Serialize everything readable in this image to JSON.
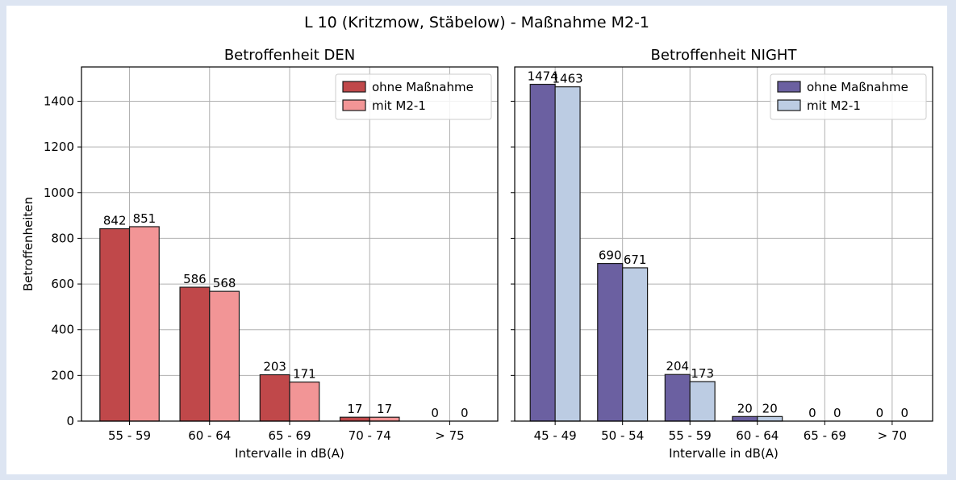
{
  "suptitle": "L 10 (Kritzmow, Stäbelow) - Maßnahme M2-1",
  "chart_data": [
    {
      "type": "bar",
      "title": "Betroffenheit DEN",
      "xlabel": "Intervalle in dB(A)",
      "ylabel": "Betroffenheiten",
      "categories": [
        "55 - 59",
        "60 - 64",
        "65 - 69",
        "70 - 74",
        "> 75"
      ],
      "series": [
        {
          "name": "ohne Maßnahme",
          "values": [
            842,
            586,
            203,
            17,
            0
          ],
          "color": "#c0484a"
        },
        {
          "name": "mit M2-1",
          "values": [
            851,
            568,
            171,
            17,
            0
          ],
          "color": "#f29596"
        }
      ],
      "ylim": [
        0,
        1550
      ],
      "yticks": [
        0,
        200,
        400,
        600,
        800,
        1000,
        1200,
        1400
      ],
      "grid": true,
      "legend_position": "top-right"
    },
    {
      "type": "bar",
      "title": "Betroffenheit NIGHT",
      "xlabel": "Intervalle in dB(A)",
      "ylabel": "",
      "categories": [
        "45 - 49",
        "50 - 54",
        "55 - 59",
        "60 - 64",
        "65 - 69",
        "> 70"
      ],
      "series": [
        {
          "name": "ohne Maßnahme",
          "values": [
            1474,
            690,
            204,
            20,
            0,
            0
          ],
          "color": "#6b60a1"
        },
        {
          "name": "mit M2-1",
          "values": [
            1463,
            671,
            173,
            20,
            0,
            0
          ],
          "color": "#bccce3"
        }
      ],
      "ylim": [
        0,
        1550
      ],
      "yticks": [
        0,
        200,
        400,
        600,
        800,
        1000,
        1200,
        1400
      ],
      "grid": true,
      "legend_position": "top-right"
    }
  ]
}
